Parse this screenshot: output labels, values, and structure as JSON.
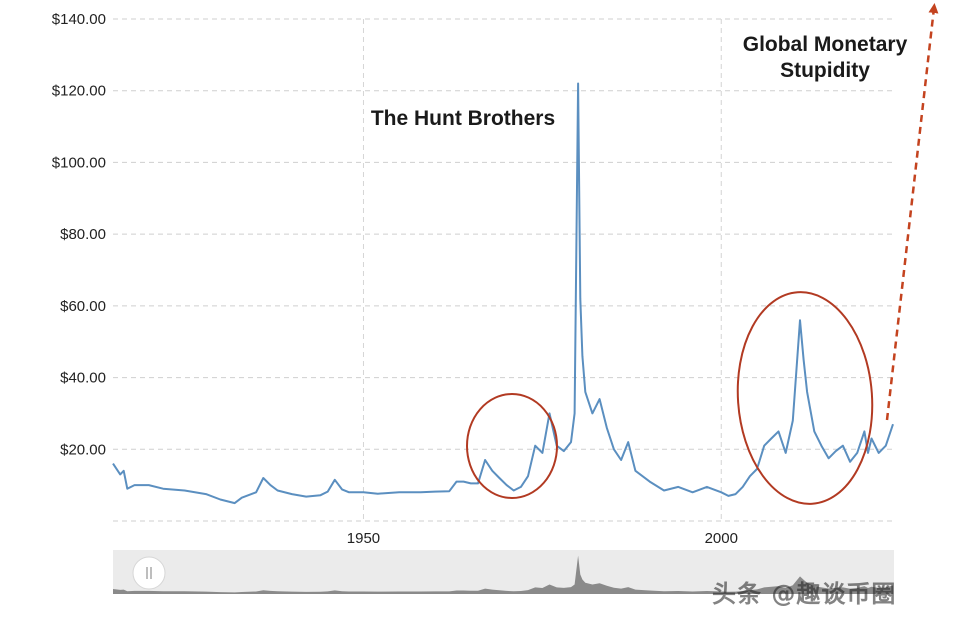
{
  "chart_data": {
    "type": "line",
    "ylim": [
      0,
      140
    ],
    "xlim": [
      1915,
      2024
    ],
    "y_ticks": [
      {
        "value": 20,
        "label": "$20.00"
      },
      {
        "value": 40,
        "label": "$40.00"
      },
      {
        "value": 60,
        "label": "$60.00"
      },
      {
        "value": 80,
        "label": "$80.00"
      },
      {
        "value": 100,
        "label": "$100.00"
      },
      {
        "value": 120,
        "label": "$120.00"
      },
      {
        "value": 140,
        "label": "$140.00"
      }
    ],
    "x_ticks": [
      {
        "value": 1950,
        "label": "1950"
      },
      {
        "value": 2000,
        "label": "2000"
      }
    ],
    "grid": true,
    "series": [
      {
        "color": "#5b8fc0",
        "x": [
          1915,
          1916,
          1916.5,
          1917,
          1918,
          1920,
          1922,
          1925,
          1928,
          1930,
          1932,
          1933,
          1935,
          1936,
          1937,
          1938,
          1940,
          1942,
          1944,
          1945,
          1946,
          1947,
          1948,
          1950,
          1952,
          1955,
          1958,
          1960,
          1962,
          1963,
          1964,
          1965,
          1966,
          1967,
          1968,
          1969,
          1970,
          1971,
          1972,
          1973,
          1974,
          1975,
          1976,
          1977,
          1978,
          1979,
          1979.5,
          1980,
          1980.3,
          1980.6,
          1981,
          1982,
          1983,
          1984,
          1985,
          1986,
          1987,
          1988,
          1990,
          1992,
          1994,
          1996,
          1998,
          2000,
          2001,
          2002,
          2003,
          2004,
          2005,
          2006,
          2007,
          2008,
          2009,
          2010,
          2011,
          2011.5,
          2012,
          2013,
          2014,
          2015,
          2016,
          2017,
          2018,
          2019,
          2020,
          2020.5,
          2021,
          2022,
          2023,
          2024
        ],
        "values": [
          16,
          13,
          14,
          9,
          10,
          10,
          9,
          8.5,
          7.5,
          6,
          5,
          6.5,
          8,
          12,
          10,
          8.5,
          7.5,
          6.8,
          7.2,
          8.2,
          11.5,
          8.8,
          8,
          8,
          7.6,
          8,
          8,
          8.2,
          8.3,
          11,
          11,
          10.5,
          10.5,
          17,
          14,
          12,
          10,
          8.5,
          9.5,
          12.5,
          21,
          19,
          30,
          21,
          19.5,
          22,
          30,
          122,
          62,
          46,
          36,
          30,
          34,
          26,
          20,
          17,
          22,
          14,
          11,
          8.5,
          9.5,
          8,
          9.5,
          8,
          7,
          7.5,
          9.5,
          12.5,
          14.5,
          21,
          23,
          25,
          19,
          28,
          56,
          45,
          36,
          25,
          21,
          17.5,
          19.5,
          21,
          16.5,
          19,
          25,
          19,
          23,
          19,
          21,
          27
        ]
      }
    ],
    "annotations": [
      {
        "text": "The Hunt Brothers"
      },
      {
        "text": "Global Monetary Stupidity"
      }
    ],
    "highlight_colour": "#b23a22"
  },
  "annotations": {
    "hunt_brothers": "The Hunt Brothers",
    "global_line1": "Global Monetary",
    "global_line2": "Stupidity"
  },
  "navigator": {
    "handle_icon": "pause-grip-icon"
  },
  "watermark": {
    "text": "头条 @趣谈币圈"
  }
}
